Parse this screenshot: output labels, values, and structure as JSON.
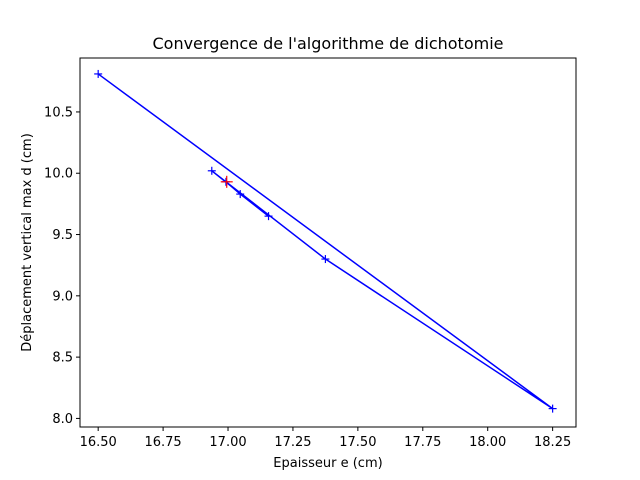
{
  "chart_data": {
    "type": "line",
    "title": "Convergence de l'algorithme de dichotomie",
    "xlabel": "Epaisseur e (cm)",
    "ylabel": "Déplacement vertical max d (cm)",
    "xlim": [
      16.43,
      18.34
    ],
    "ylim": [
      7.93,
      10.94
    ],
    "grid": false,
    "xticks": [
      "16.50",
      "16.75",
      "17.00",
      "17.25",
      "17.50",
      "17.75",
      "18.00",
      "18.25"
    ],
    "yticks": [
      "8.0",
      "8.5",
      "9.0",
      "9.5",
      "10.0",
      "10.5"
    ],
    "series": [
      {
        "color": "#0000ff",
        "marker": "+",
        "x": [
          16.5,
          18.25,
          17.375,
          16.9375,
          17.156,
          17.047,
          16.992
        ],
        "y": [
          10.81,
          8.08,
          9.3,
          10.02,
          9.65,
          9.83,
          9.93
        ]
      },
      {
        "color": "#ff0000",
        "marker": "+",
        "x": [
          16.995
        ],
        "y": [
          9.93
        ]
      }
    ]
  }
}
